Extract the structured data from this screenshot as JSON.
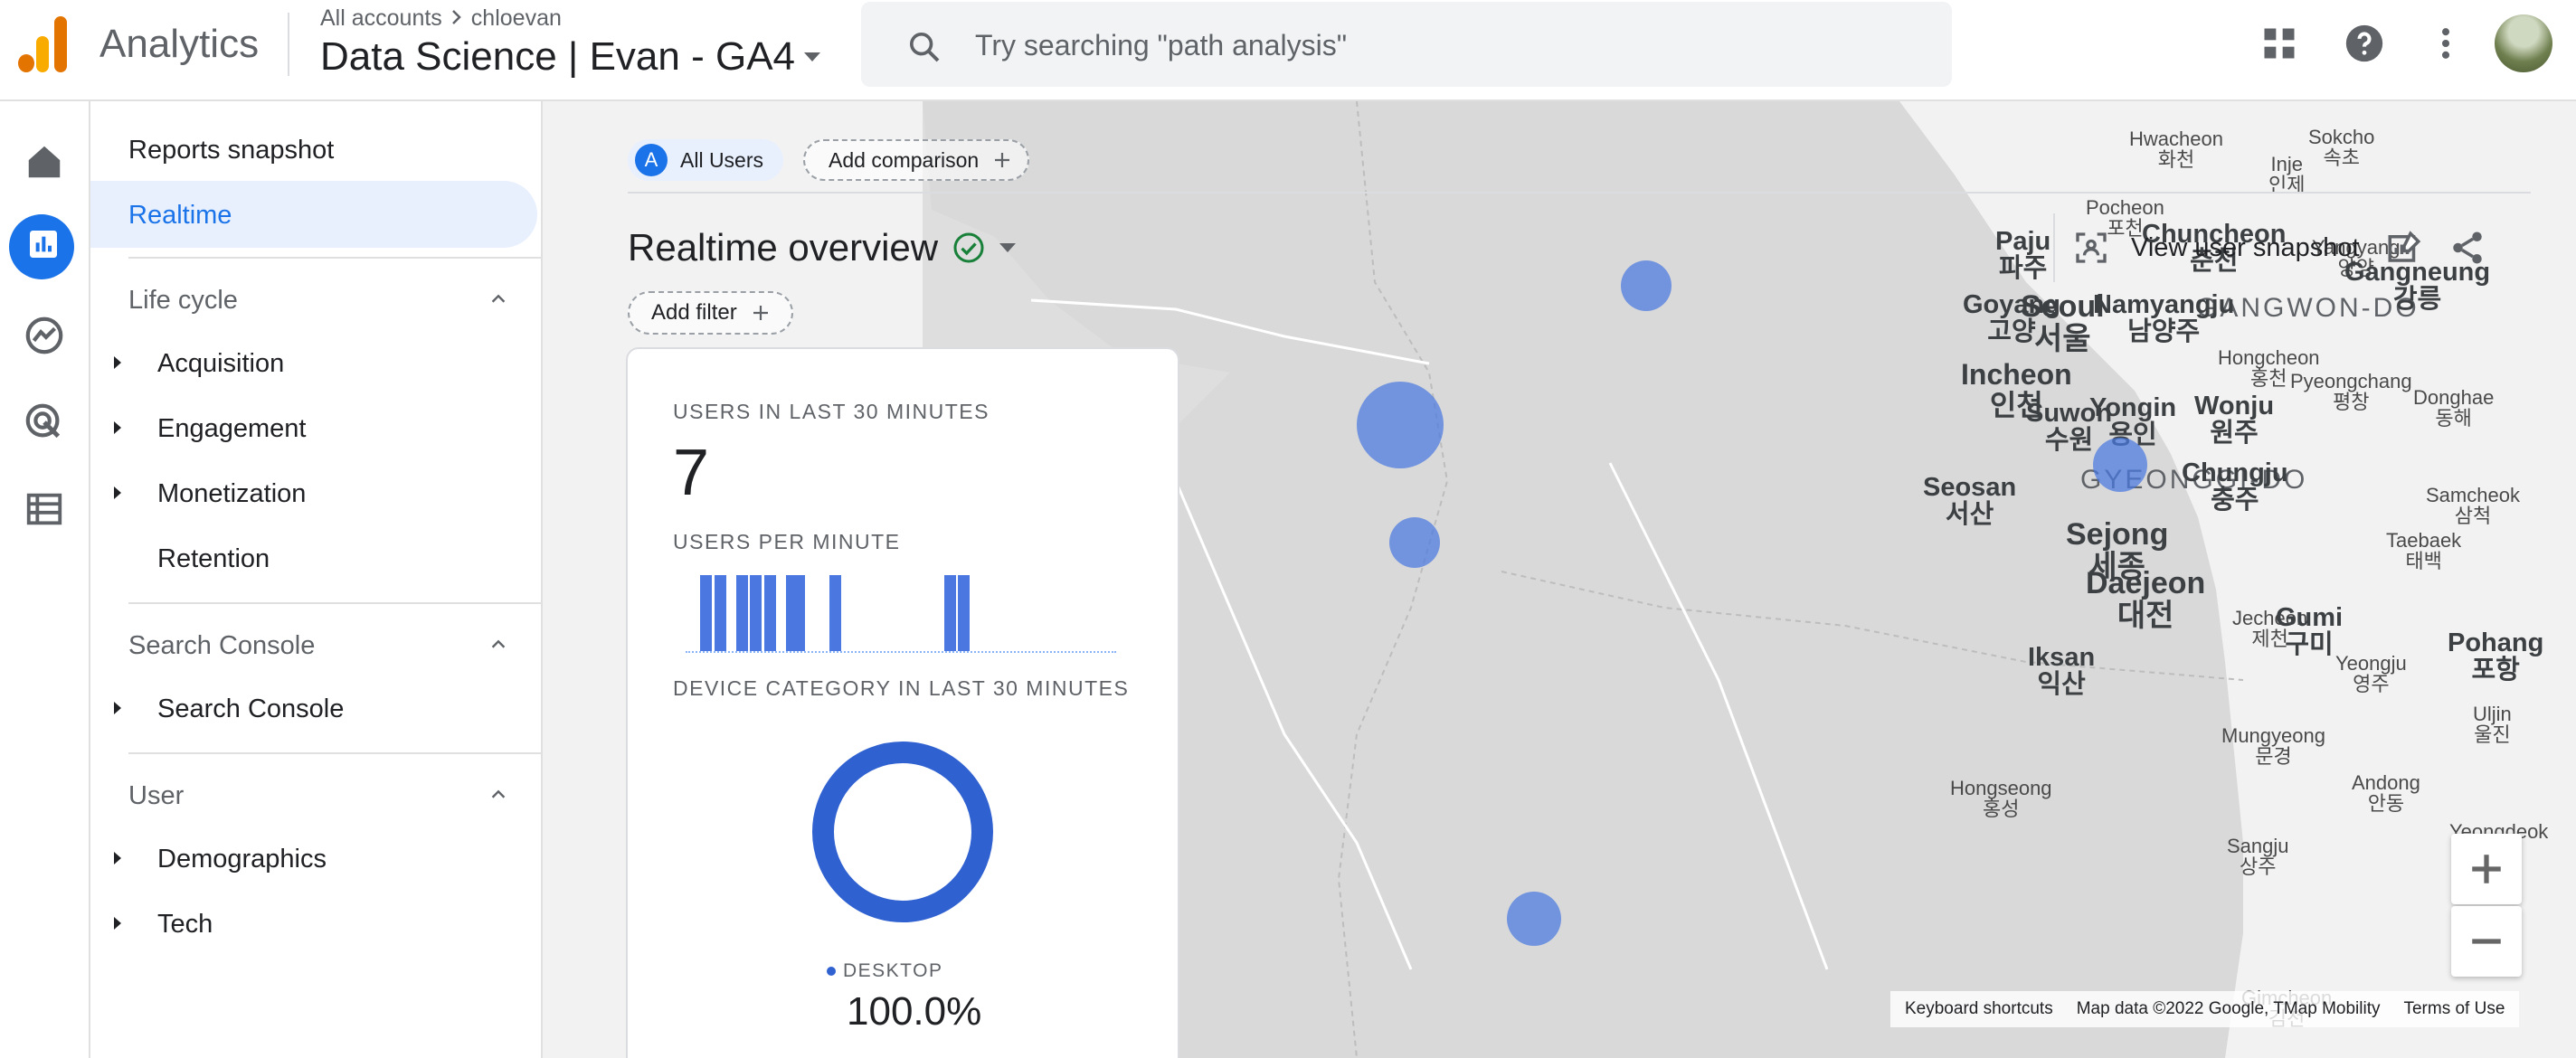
{
  "header": {
    "app_name": "Analytics",
    "breadcrumb": [
      "All accounts",
      "chloevan"
    ],
    "property": "Data Science | Evan - GA4",
    "search_placeholder": "Try searching \"path analysis\""
  },
  "nav": {
    "reports_snapshot": "Reports snapshot",
    "realtime": "Realtime",
    "sections": [
      {
        "title": "Life cycle",
        "items": [
          "Acquisition",
          "Engagement",
          "Monetization",
          "Retention"
        ]
      },
      {
        "title": "Search Console",
        "items": [
          "Search Console"
        ]
      },
      {
        "title": "User",
        "items": [
          "Demographics",
          "Tech"
        ]
      }
    ]
  },
  "toolbar": {
    "all_users_letter": "A",
    "all_users": "All Users",
    "add_comparison": "Add comparison",
    "title": "Realtime overview",
    "add_filter": "Add filter",
    "view_snapshot": "View user snapshot"
  },
  "card": {
    "users_label": "USERS IN LAST 30 MINUTES",
    "users_value": "7",
    "per_minute_label": "USERS PER MINUTE",
    "per_minute_values": [
      0,
      0,
      0,
      0,
      0,
      0,
      0,
      0,
      0,
      0,
      0,
      0,
      0,
      0,
      0,
      0,
      0,
      0,
      0,
      0,
      0,
      1,
      0,
      1,
      0,
      0,
      0,
      0,
      0,
      0,
      0,
      0,
      0,
      0,
      0,
      0,
      0,
      0,
      0,
      1,
      0,
      0,
      0,
      0,
      1,
      1,
      0,
      0,
      1,
      0,
      1,
      0,
      1,
      0,
      0,
      1,
      0,
      1,
      0,
      0
    ],
    "device_label": "DEVICE CATEGORY IN LAST 30 MINUTES",
    "device_name": "DESKTOP",
    "device_pct": "100.0%"
  },
  "map": {
    "cities": [
      {
        "en": "Paju",
        "ko": "파주"
      },
      {
        "en": "Chuncheon",
        "ko": "춘천"
      },
      {
        "en": "Gangneung",
        "ko": "강릉"
      },
      {
        "en": "Goyang",
        "ko": "고양"
      },
      {
        "en": "Seoul",
        "ko": "서울"
      },
      {
        "en": "Namyangju",
        "ko": "남양주"
      },
      {
        "en": "Incheon",
        "ko": "인천"
      },
      {
        "en": "Suwon",
        "ko": "수원"
      },
      {
        "en": "Yongin",
        "ko": "용인"
      },
      {
        "en": "Wonju",
        "ko": "원주"
      },
      {
        "en": "Chungju",
        "ko": "충주"
      },
      {
        "en": "Seosan",
        "ko": "서산"
      },
      {
        "en": "Sejong",
        "ko": "세종"
      },
      {
        "en": "Daejeon",
        "ko": "대전"
      },
      {
        "en": "Gumi",
        "ko": "구미"
      },
      {
        "en": "Pohang",
        "ko": "포항"
      },
      {
        "en": "Iksan",
        "ko": "익산"
      }
    ],
    "towns": [
      {
        "en": "Sokcho",
        "ko": "속초"
      },
      {
        "en": "Hwacheon",
        "ko": "화천"
      },
      {
        "en": "Inje",
        "ko": "인제"
      },
      {
        "en": "Pocheon",
        "ko": "포천"
      },
      {
        "en": "Yangyang",
        "ko": "양양"
      },
      {
        "en": "Hongcheon",
        "ko": "홍천"
      },
      {
        "en": "Pyeongchang",
        "ko": "평창"
      },
      {
        "en": "Donghae",
        "ko": "동해"
      },
      {
        "en": "Samcheok",
        "ko": "삼척"
      },
      {
        "en": "Taebaek",
        "ko": "태백"
      },
      {
        "en": "Jecheon",
        "ko": "제천"
      },
      {
        "en": "Yeongju",
        "ko": "영주"
      },
      {
        "en": "Uljin",
        "ko": "울진"
      },
      {
        "en": "Mungyeong",
        "ko": "문경"
      },
      {
        "en": "Hongseong",
        "ko": "홍성"
      },
      {
        "en": "Andong",
        "ko": "안동"
      },
      {
        "en": "Yeongdeok",
        "ko": "영덕"
      },
      {
        "en": "Sangju",
        "ko": "상주"
      },
      {
        "en": "Gimcheon",
        "ko": "김천"
      }
    ],
    "provinces": [
      "GANGWON-DO",
      "GYEONGGI-DO"
    ],
    "keyboard_shortcuts": "Keyboard shortcuts",
    "map_data": "Map data ©2022 Google, TMap Mobility",
    "terms": "Terms of Use"
  },
  "colors": {
    "accent": "#1a73e8",
    "bubble": "#4a78e0",
    "donut": "#3061d1"
  }
}
